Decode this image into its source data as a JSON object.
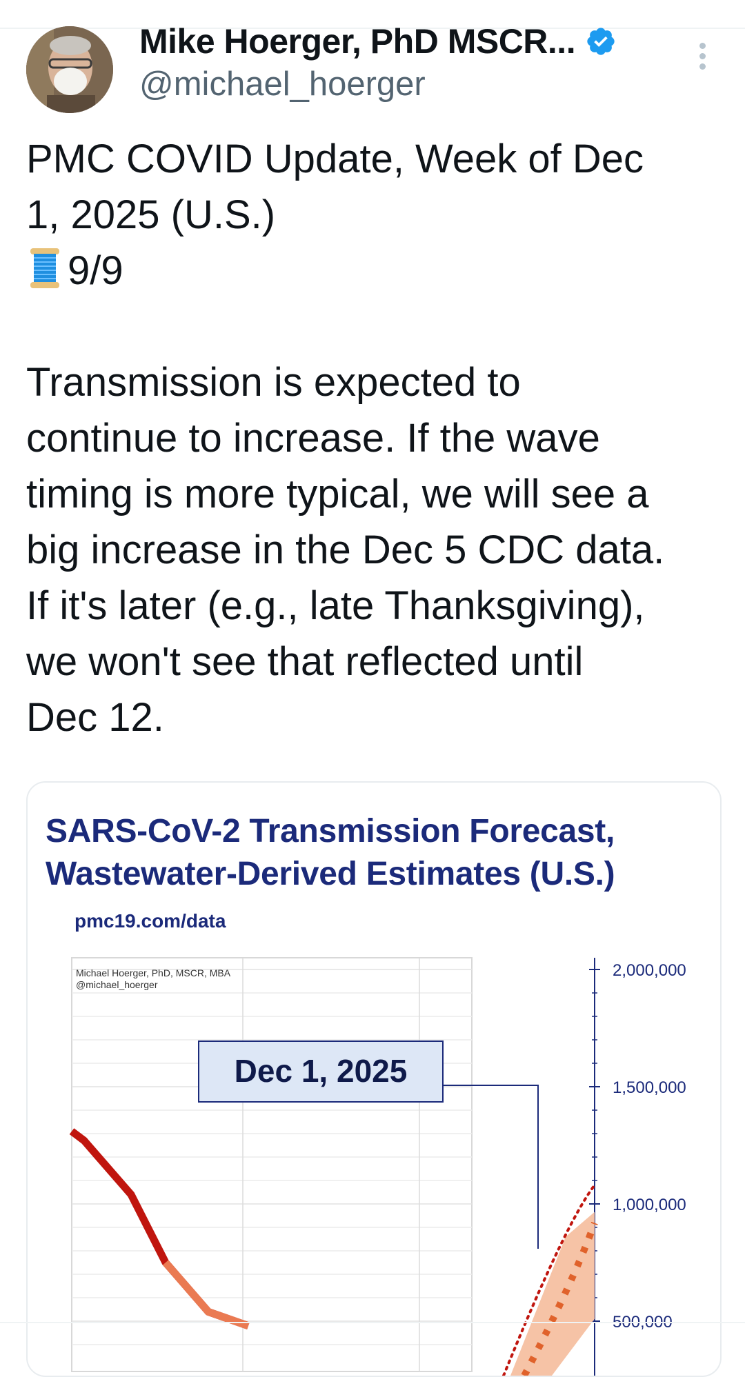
{
  "header": {
    "display_name": "Mike Hoerger, PhD MSCR...",
    "handle": "@michael_hoerger"
  },
  "tweet": {
    "line1": "PMC COVID Update, Week of Dec\n1, 2025 (U.S.)",
    "thread_count": "9/9",
    "body": "Transmission is expected to\ncontinue to increase. If the wave\ntiming is more typical, we will see a\nbig increase in the Dec 5 CDC data.\nIf it's later (e.g., late Thanksgiving),\nwe won't see that reflected until\nDec 12."
  },
  "card": {
    "title_line1": "SARS-CoV-2 Transmission Forecast,",
    "title_line2": "Wastewater-Derived Estimates (U.S.)",
    "url": "pmc19.com/data",
    "author": "Michael Hoerger, PhD, MSCR, MBA",
    "author_handle": "@michael_hoerger",
    "date_callout": "Dec 1, 2025"
  },
  "chart_data": {
    "type": "line",
    "title": "SARS-CoV-2 Transmission Forecast, Wastewater-Derived Estimates (U.S.)",
    "y_axis_side": "right",
    "y_ticks": [
      "2,000,000",
      "1,500,000",
      "1,000,000",
      "500,000"
    ],
    "y_tick_values": [
      2000000,
      1500000,
      1000000,
      500000
    ],
    "ylim": [
      500000,
      2000000
    ],
    "annotation": "Dec 1, 2025",
    "series": [
      {
        "values": [
          1310000,
          1270000,
          1040000,
          750000,
          540000,
          480000
        ]
      }
    ],
    "forecast_band": {
      "upper_end": 860000,
      "lower_end": 510000
    }
  },
  "colors": {
    "accent": "#1d9bf0",
    "chart_title": "#1b2a7a",
    "observed_line": "#c0150e",
    "forecast": "#e0622b"
  },
  "icons": {
    "verified": "verified-badge-icon",
    "more": "more-options-icon",
    "thread": "spool-of-thread-icon"
  }
}
